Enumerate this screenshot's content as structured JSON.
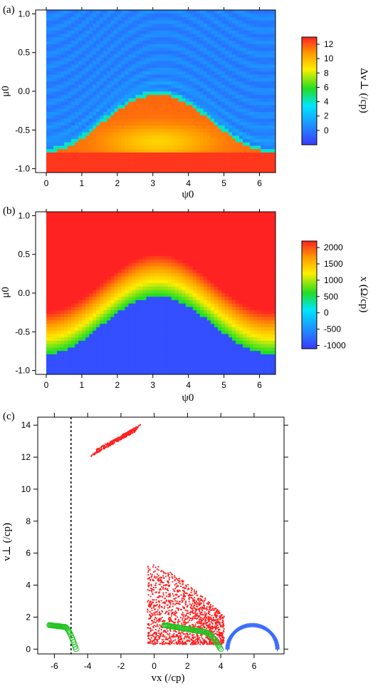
{
  "chart_data": [
    {
      "type": "heatmap",
      "panel_label": "(a)",
      "xlabel": "ψ0",
      "ylabel": "μ0",
      "colorbar_label": "Δv⊥ (/cp)",
      "xlim": [
        -0.3,
        6.45
      ],
      "ylim": [
        -1.05,
        1.05
      ],
      "x_ticks": [
        "0",
        "1",
        "2",
        "3",
        "4",
        "5",
        "6"
      ],
      "y_ticks": [
        "-1.0",
        "-0.5",
        "0.0",
        "0.5",
        "1.0"
      ],
      "colorbar_range": [
        -2,
        13
      ],
      "colorbar_ticks": [
        "0",
        "2",
        "4",
        "6",
        "8",
        "10",
        "12"
      ],
      "colorscale": [
        "#3a3aff",
        "#1e90ff",
        "#00e5ff",
        "#22dd22",
        "#ffee00",
        "#ff9900",
        "#ff2222"
      ]
    },
    {
      "type": "heatmap",
      "panel_label": "(b)",
      "xlabel": "ψ0",
      "ylabel": "μ0",
      "colorbar_label": "x (Ω/cp)",
      "xlim": [
        -0.3,
        6.45
      ],
      "ylim": [
        -1.05,
        1.05
      ],
      "x_ticks": [
        "0",
        "1",
        "2",
        "3",
        "4",
        "5",
        "6"
      ],
      "y_ticks": [
        "-1.0",
        "-0.5",
        "0.0",
        "0.5",
        "1.0"
      ],
      "colorbar_range": [
        -1100,
        2200
      ],
      "colorbar_ticks": [
        "-1000",
        "-500",
        "0",
        "500",
        "1000",
        "1500",
        "2000"
      ],
      "colorscale": [
        "#3a3aff",
        "#1e90ff",
        "#00e5ff",
        "#22dd22",
        "#ffee00",
        "#ff9900",
        "#ff2222"
      ]
    },
    {
      "type": "scatter",
      "panel_label": "(c)",
      "xlabel": "vx (/cp)",
      "ylabel": "v⊥ (/cp)",
      "xlim": [
        -7.0,
        7.8
      ],
      "ylim": [
        -0.3,
        14.5
      ],
      "x_ticks": [
        "-6",
        "-4",
        "-2",
        "0",
        "2",
        "4",
        "6"
      ],
      "y_ticks": [
        "0",
        "2",
        "4",
        "6",
        "8",
        "10",
        "12",
        "14"
      ],
      "vertical_line_x": -5.0,
      "series": [
        {
          "marker": "dot",
          "color": "#ff2020",
          "cluster_upper": {
            "x_range": [
              -3.7,
              -1.0
            ],
            "y_range": [
              12.2,
              14.0
            ]
          },
          "cluster_lower": {
            "x_range": [
              -0.5,
              4.2
            ],
            "y_range": [
              0.3,
              5.6
            ]
          }
        },
        {
          "marker": "circle",
          "color": "#22c422",
          "arcs": [
            {
              "x_range": [
                -6.3,
                -4.7
              ]
            },
            {
              "x_range": [
                0.6,
                4.0
              ]
            }
          ]
        },
        {
          "marker": "plus",
          "color": "#3a6cff",
          "arc": {
            "x_range": [
              4.4,
              7.4
            ]
          }
        }
      ]
    }
  ]
}
